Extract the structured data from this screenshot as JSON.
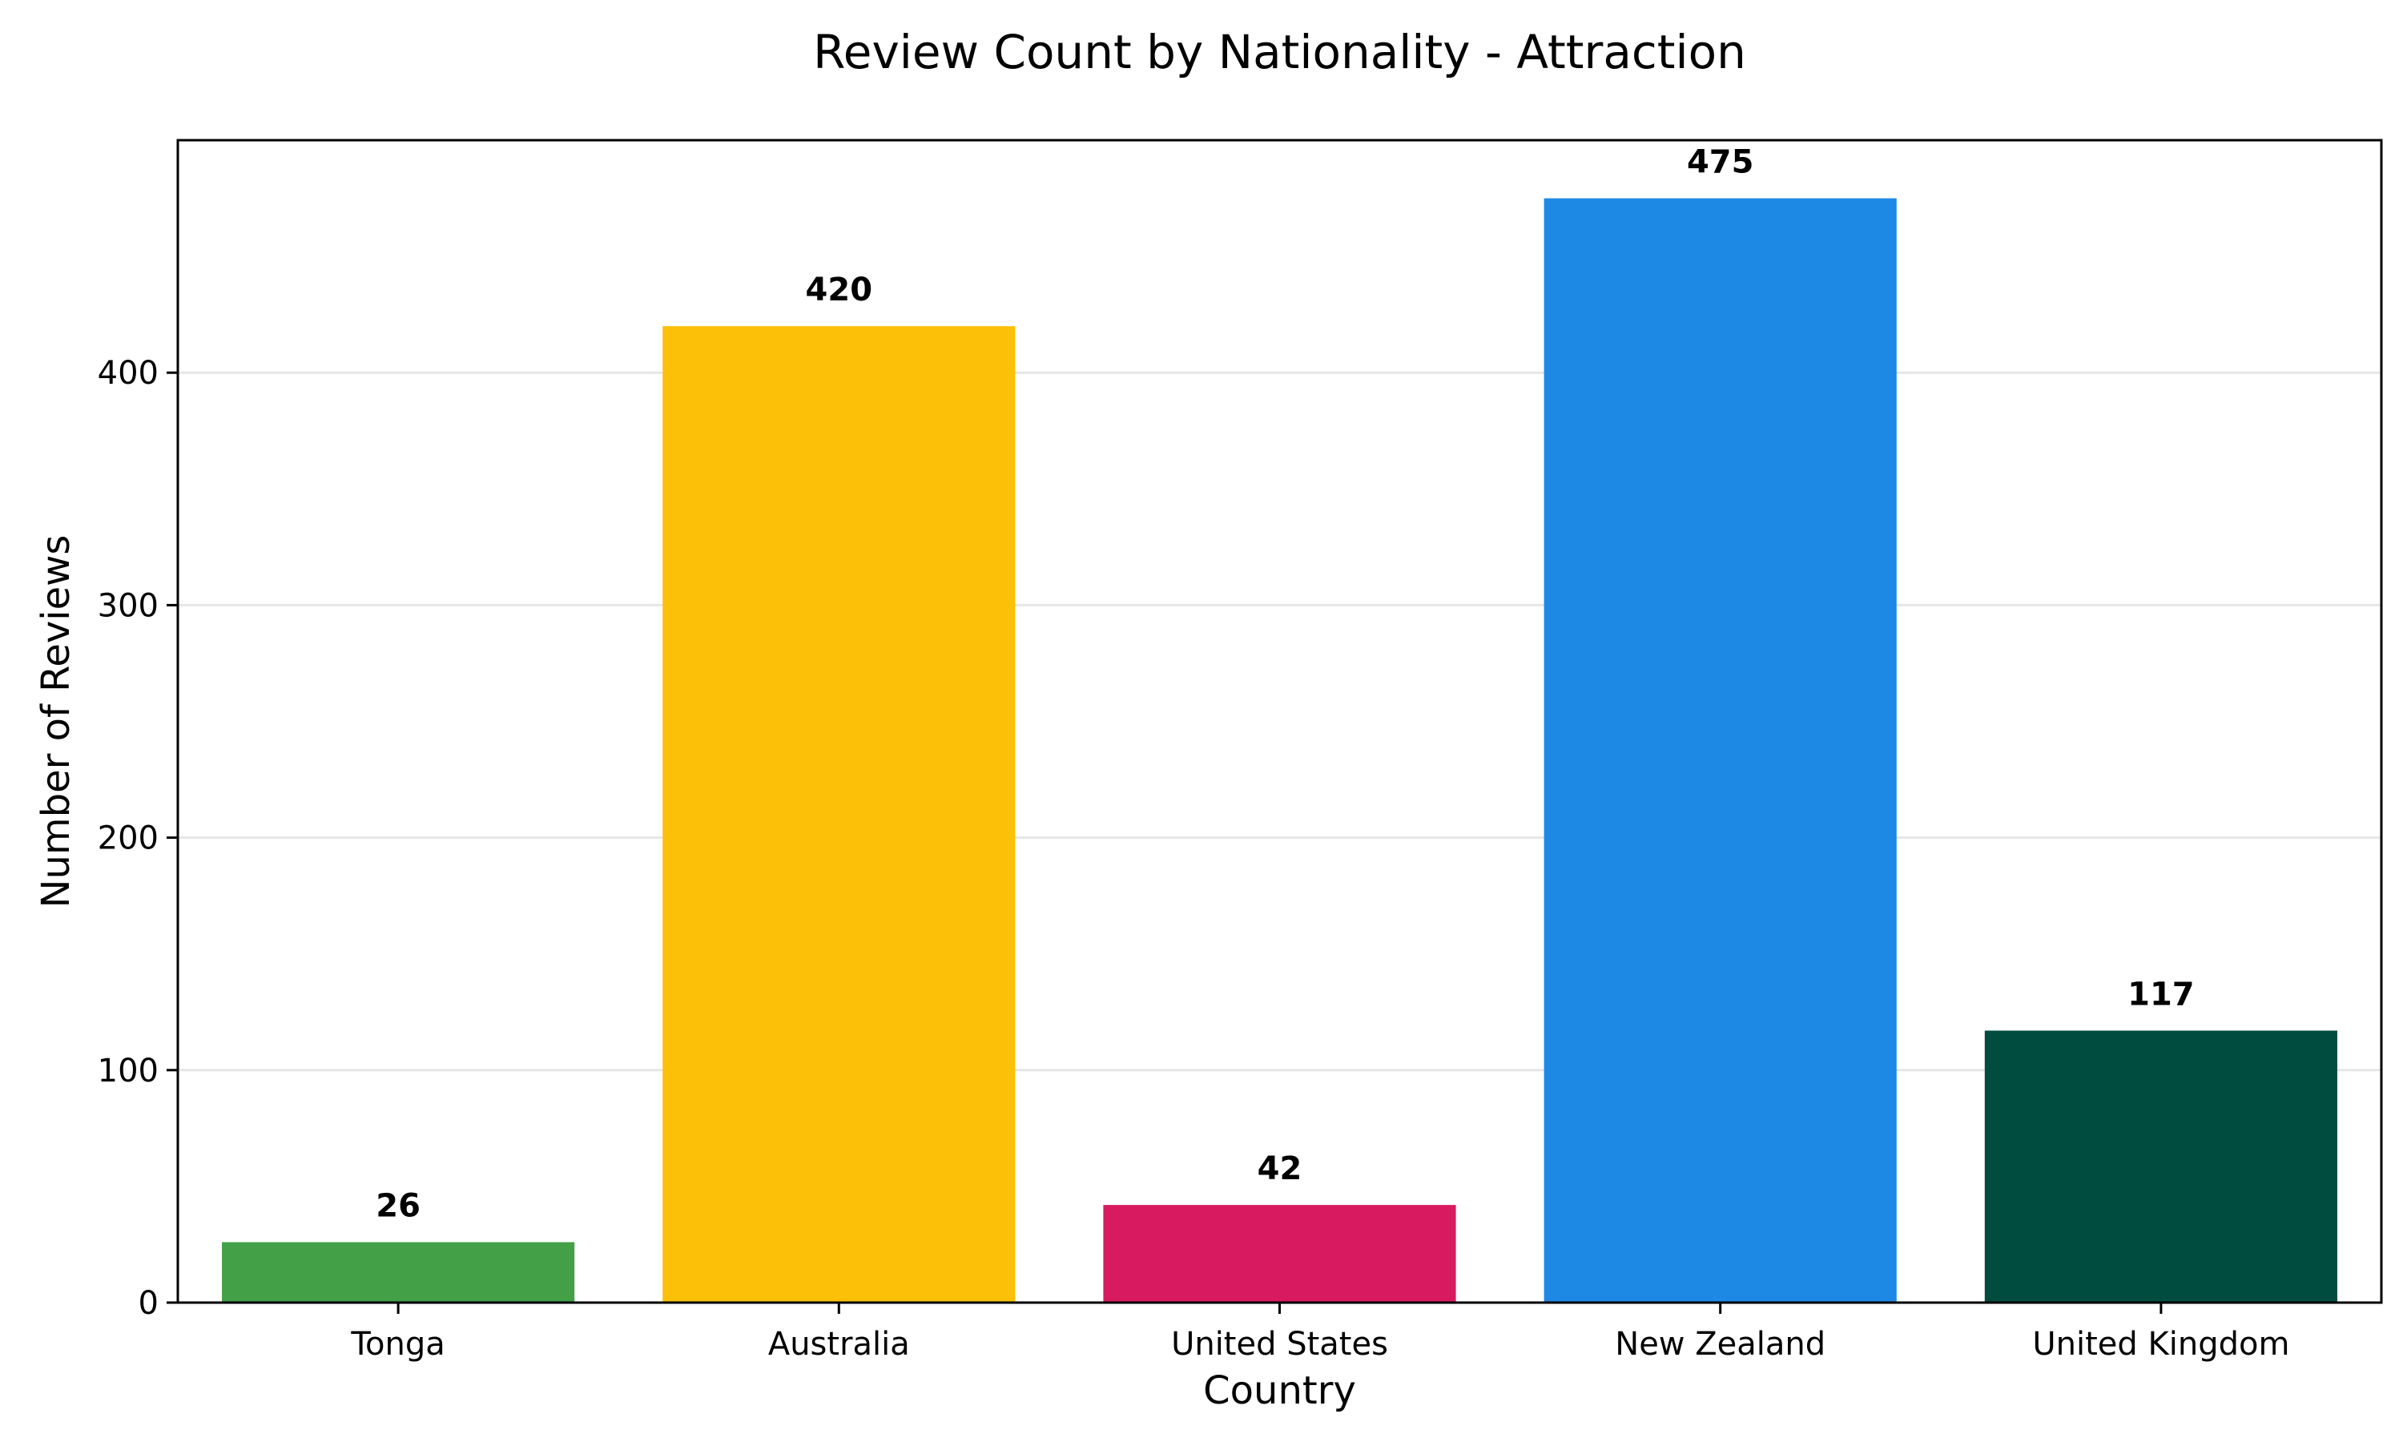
{
  "chart_data": {
    "type": "bar",
    "title": "Review Count by Nationality - Attraction",
    "xlabel": "Country",
    "ylabel": "Number of Reviews",
    "categories": [
      "Tonga",
      "Australia",
      "United States",
      "New Zealand",
      "United Kingdom"
    ],
    "values": [
      26,
      420,
      42,
      475,
      117
    ],
    "value_labels": [
      "26",
      "420",
      "42",
      "475",
      "117"
    ],
    "colors": [
      "#43a047",
      "#fdc008",
      "#d81b60",
      "#1e88e5",
      "#004d40"
    ],
    "ylim": [
      0,
      500
    ],
    "yticks": [
      0,
      100,
      200,
      300,
      400
    ],
    "ytick_labels": [
      "0",
      "100",
      "200",
      "300",
      "400"
    ],
    "grid": "y-axis, light gray",
    "legend": "none"
  }
}
